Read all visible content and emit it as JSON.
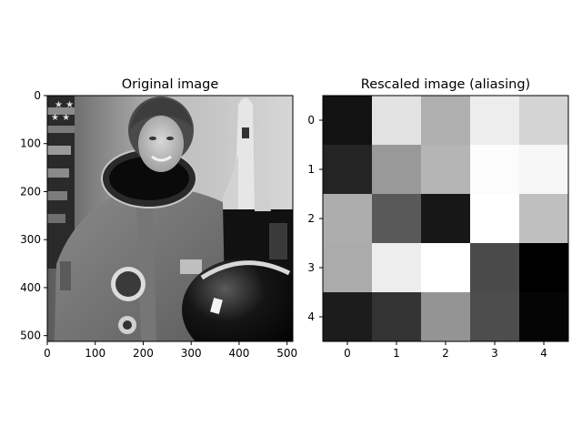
{
  "chart_data": [
    {
      "type": "image",
      "title": "Original image",
      "colormap": "gray",
      "image_description": "grayscale portrait photograph of an astronaut in a spacesuit holding a helmet, with an American flag on the left and a space shuttle on a launch pad in the background",
      "xlim": [
        0,
        512
      ],
      "ylim": [
        512,
        0
      ],
      "x_ticks": [
        "0",
        "100",
        "200",
        "300",
        "400",
        "500"
      ],
      "y_ticks": [
        "0",
        "100",
        "200",
        "300",
        "400",
        "500"
      ],
      "x_tick_values": [
        0,
        100,
        200,
        300,
        400,
        500
      ],
      "y_tick_values": [
        0,
        100,
        200,
        300,
        400,
        500
      ]
    },
    {
      "type": "heatmap",
      "title": "Rescaled image (aliasing)",
      "colormap": "gray",
      "x_ticks": [
        "0",
        "1",
        "2",
        "3",
        "4"
      ],
      "y_ticks": [
        "0",
        "1",
        "2",
        "3",
        "4"
      ],
      "x_tick_values": [
        0,
        1,
        2,
        3,
        4
      ],
      "y_tick_values": [
        0,
        1,
        2,
        3,
        4
      ],
      "values": [
        [
          0.07,
          0.89,
          0.69,
          0.93,
          0.83
        ],
        [
          0.14,
          0.6,
          0.71,
          0.99,
          0.97
        ],
        [
          0.68,
          0.35,
          0.09,
          1.0,
          0.75
        ],
        [
          0.67,
          0.93,
          1.0,
          0.29,
          0.0
        ],
        [
          0.11,
          0.2,
          0.58,
          0.3,
          0.02
        ]
      ]
    }
  ]
}
